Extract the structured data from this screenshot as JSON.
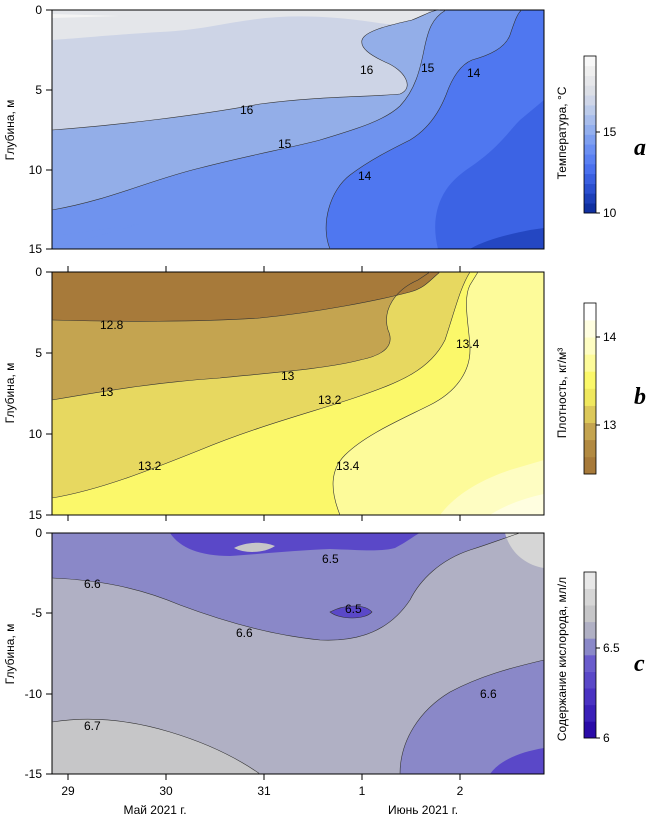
{
  "chart_data": [
    {
      "type": "contour",
      "panel_letter": "a",
      "ylabel": "Глубина, м",
      "colorbar_label": "Температура, °С",
      "colorbar_ticks": [
        "15",
        "10"
      ],
      "y_ticks": [
        "0",
        "5",
        "10",
        "15"
      ],
      "contour_labels": [
        "16",
        "15",
        "14",
        "16",
        "15",
        "14"
      ],
      "levels": [
        10,
        10.5,
        11,
        11.5,
        12,
        12.5,
        13,
        13.5,
        14,
        14.5,
        15,
        15.5,
        16,
        16.5,
        17,
        17.5
      ],
      "colors": [
        "#1030a0",
        "#1d3fb8",
        "#2b4fcf",
        "#3a5fe0",
        "#4a70ee",
        "#5a80f2",
        "#6b8ff2",
        "#7e9ff0",
        "#93afee",
        "#a8bdec",
        "#bccbea",
        "#cfd6e8",
        "#dcdfe6",
        "#e6e7ea",
        "#efefef",
        "#f8f8f8"
      ]
    },
    {
      "type": "contour",
      "panel_letter": "b",
      "ylabel": "Глубина, м",
      "colorbar_label": "Плотность, кг/м³",
      "colorbar_ticks": [
        "14",
        "13"
      ],
      "y_ticks": [
        "0",
        "5",
        "10",
        "15"
      ],
      "contour_labels": [
        "12.8",
        "13",
        "13.2",
        "13",
        "13.2",
        "13.4",
        "13.4"
      ],
      "levels": [
        12.6,
        12.8,
        13.0,
        13.2,
        13.4,
        13.6,
        13.8,
        14.0,
        14.2,
        14.4
      ],
      "colors": [
        "#a77a3a",
        "#b28a42",
        "#c4a450",
        "#dcc85a",
        "#f0e85e",
        "#fbf86a",
        "#fdfb9a",
        "#fefdc2",
        "#fffee0",
        "#ffffff"
      ]
    },
    {
      "type": "contour",
      "panel_letter": "c",
      "ylabel": "Глубина, м",
      "colorbar_label": "Содержание кислорода, мл/л",
      "colorbar_ticks": [
        "6.5",
        "6"
      ],
      "y_ticks": [
        "0",
        "-5",
        "-10",
        "-15"
      ],
      "contour_labels": [
        "6.6",
        "6.6",
        "6.5",
        "6.5",
        "6.6",
        "6.7"
      ],
      "levels": [
        6.0,
        6.1,
        6.2,
        6.3,
        6.4,
        6.5,
        6.6,
        6.7,
        6.8,
        6.9
      ],
      "colors": [
        "#2a0ba8",
        "#3a20b8",
        "#4a32c2",
        "#5a48c8",
        "#6a5ccc",
        "#8a88c8",
        "#b0b0c4",
        "#c6c6c8",
        "#d6d6d6",
        "#e8e8e8"
      ]
    }
  ],
  "x_axis": {
    "ticks": [
      "29",
      "30",
      "31",
      "1",
      "2"
    ],
    "month_labels": [
      "Май 2021 г.",
      "Июнь 2021 г."
    ]
  }
}
